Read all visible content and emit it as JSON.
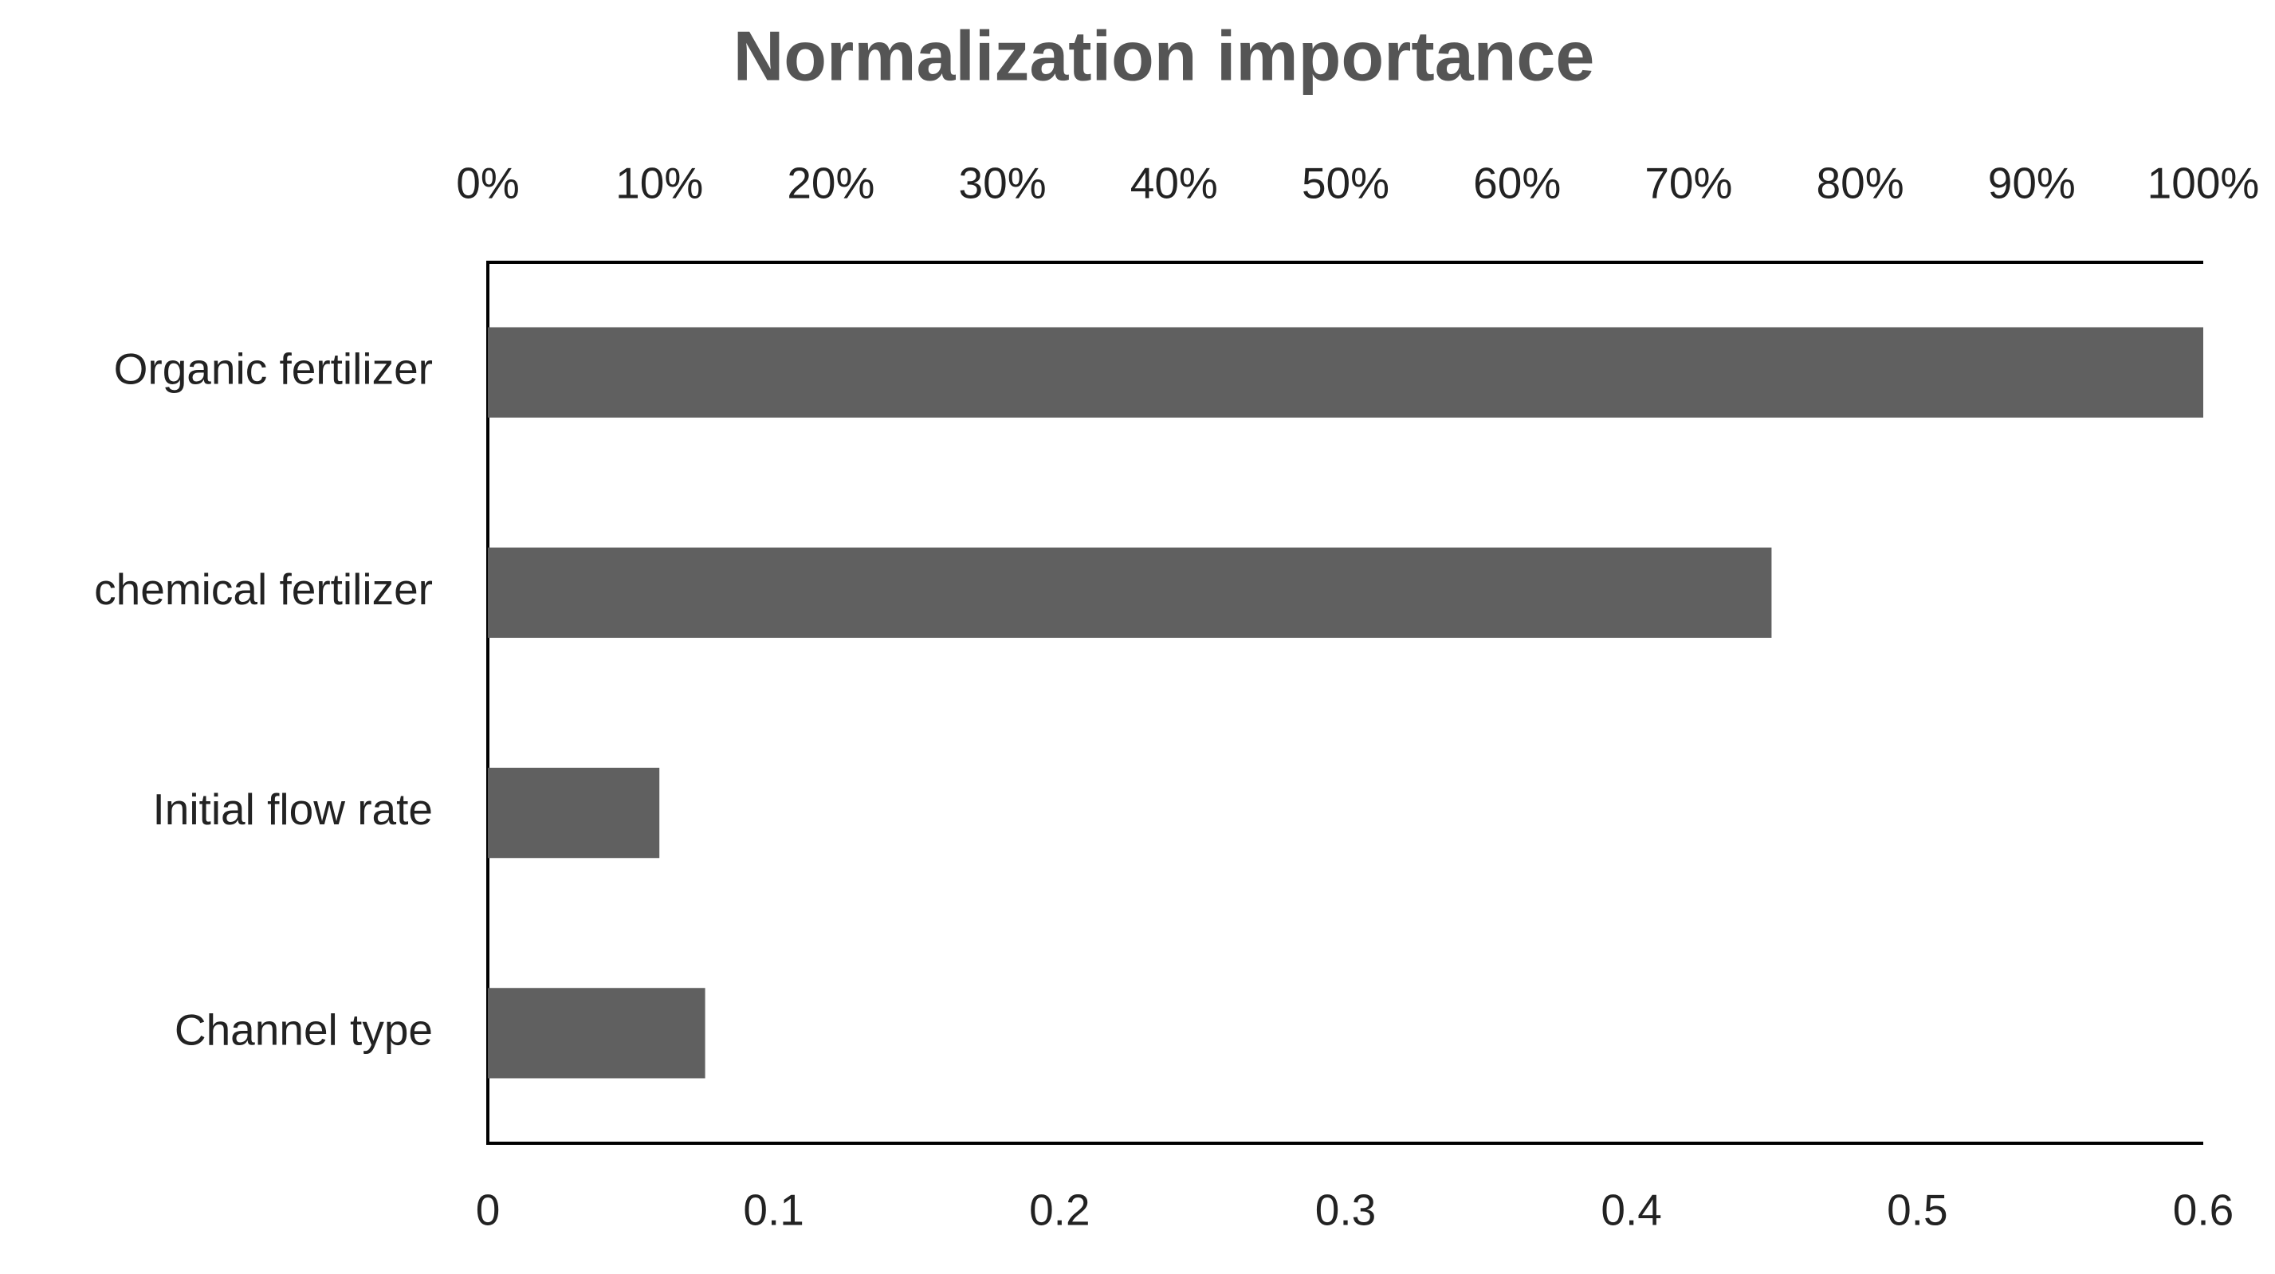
{
  "chart_data": {
    "type": "hbar",
    "title": "Normalization importance",
    "categories": [
      "Organic fertilizer",
      "chemical fertilizer",
      "Initial flow rate",
      "Channel type"
    ],
    "values": [
      0.6,
      0.449,
      0.06,
      0.076
    ],
    "color": "#606060",
    "xlim": [
      0,
      0.6
    ],
    "xticks": [
      0,
      0.1,
      0.2,
      0.3,
      0.4,
      0.5,
      0.6
    ],
    "x2lim": [
      0,
      100
    ],
    "x2ticks": [
      {
        "value": 0,
        "label": "0%"
      },
      {
        "value": 10,
        "label": "10%"
      },
      {
        "value": 20,
        "label": "20%"
      },
      {
        "value": 30,
        "label": "30%"
      },
      {
        "value": 40,
        "label": "40%"
      },
      {
        "value": 50,
        "label": "50%"
      },
      {
        "value": 60,
        "label": "60%"
      },
      {
        "value": 70,
        "label": "70%"
      },
      {
        "value": 80,
        "label": "80%"
      },
      {
        "value": 90,
        "label": "90%"
      },
      {
        "value": 100,
        "label": "100%"
      }
    ],
    "grid": false
  }
}
